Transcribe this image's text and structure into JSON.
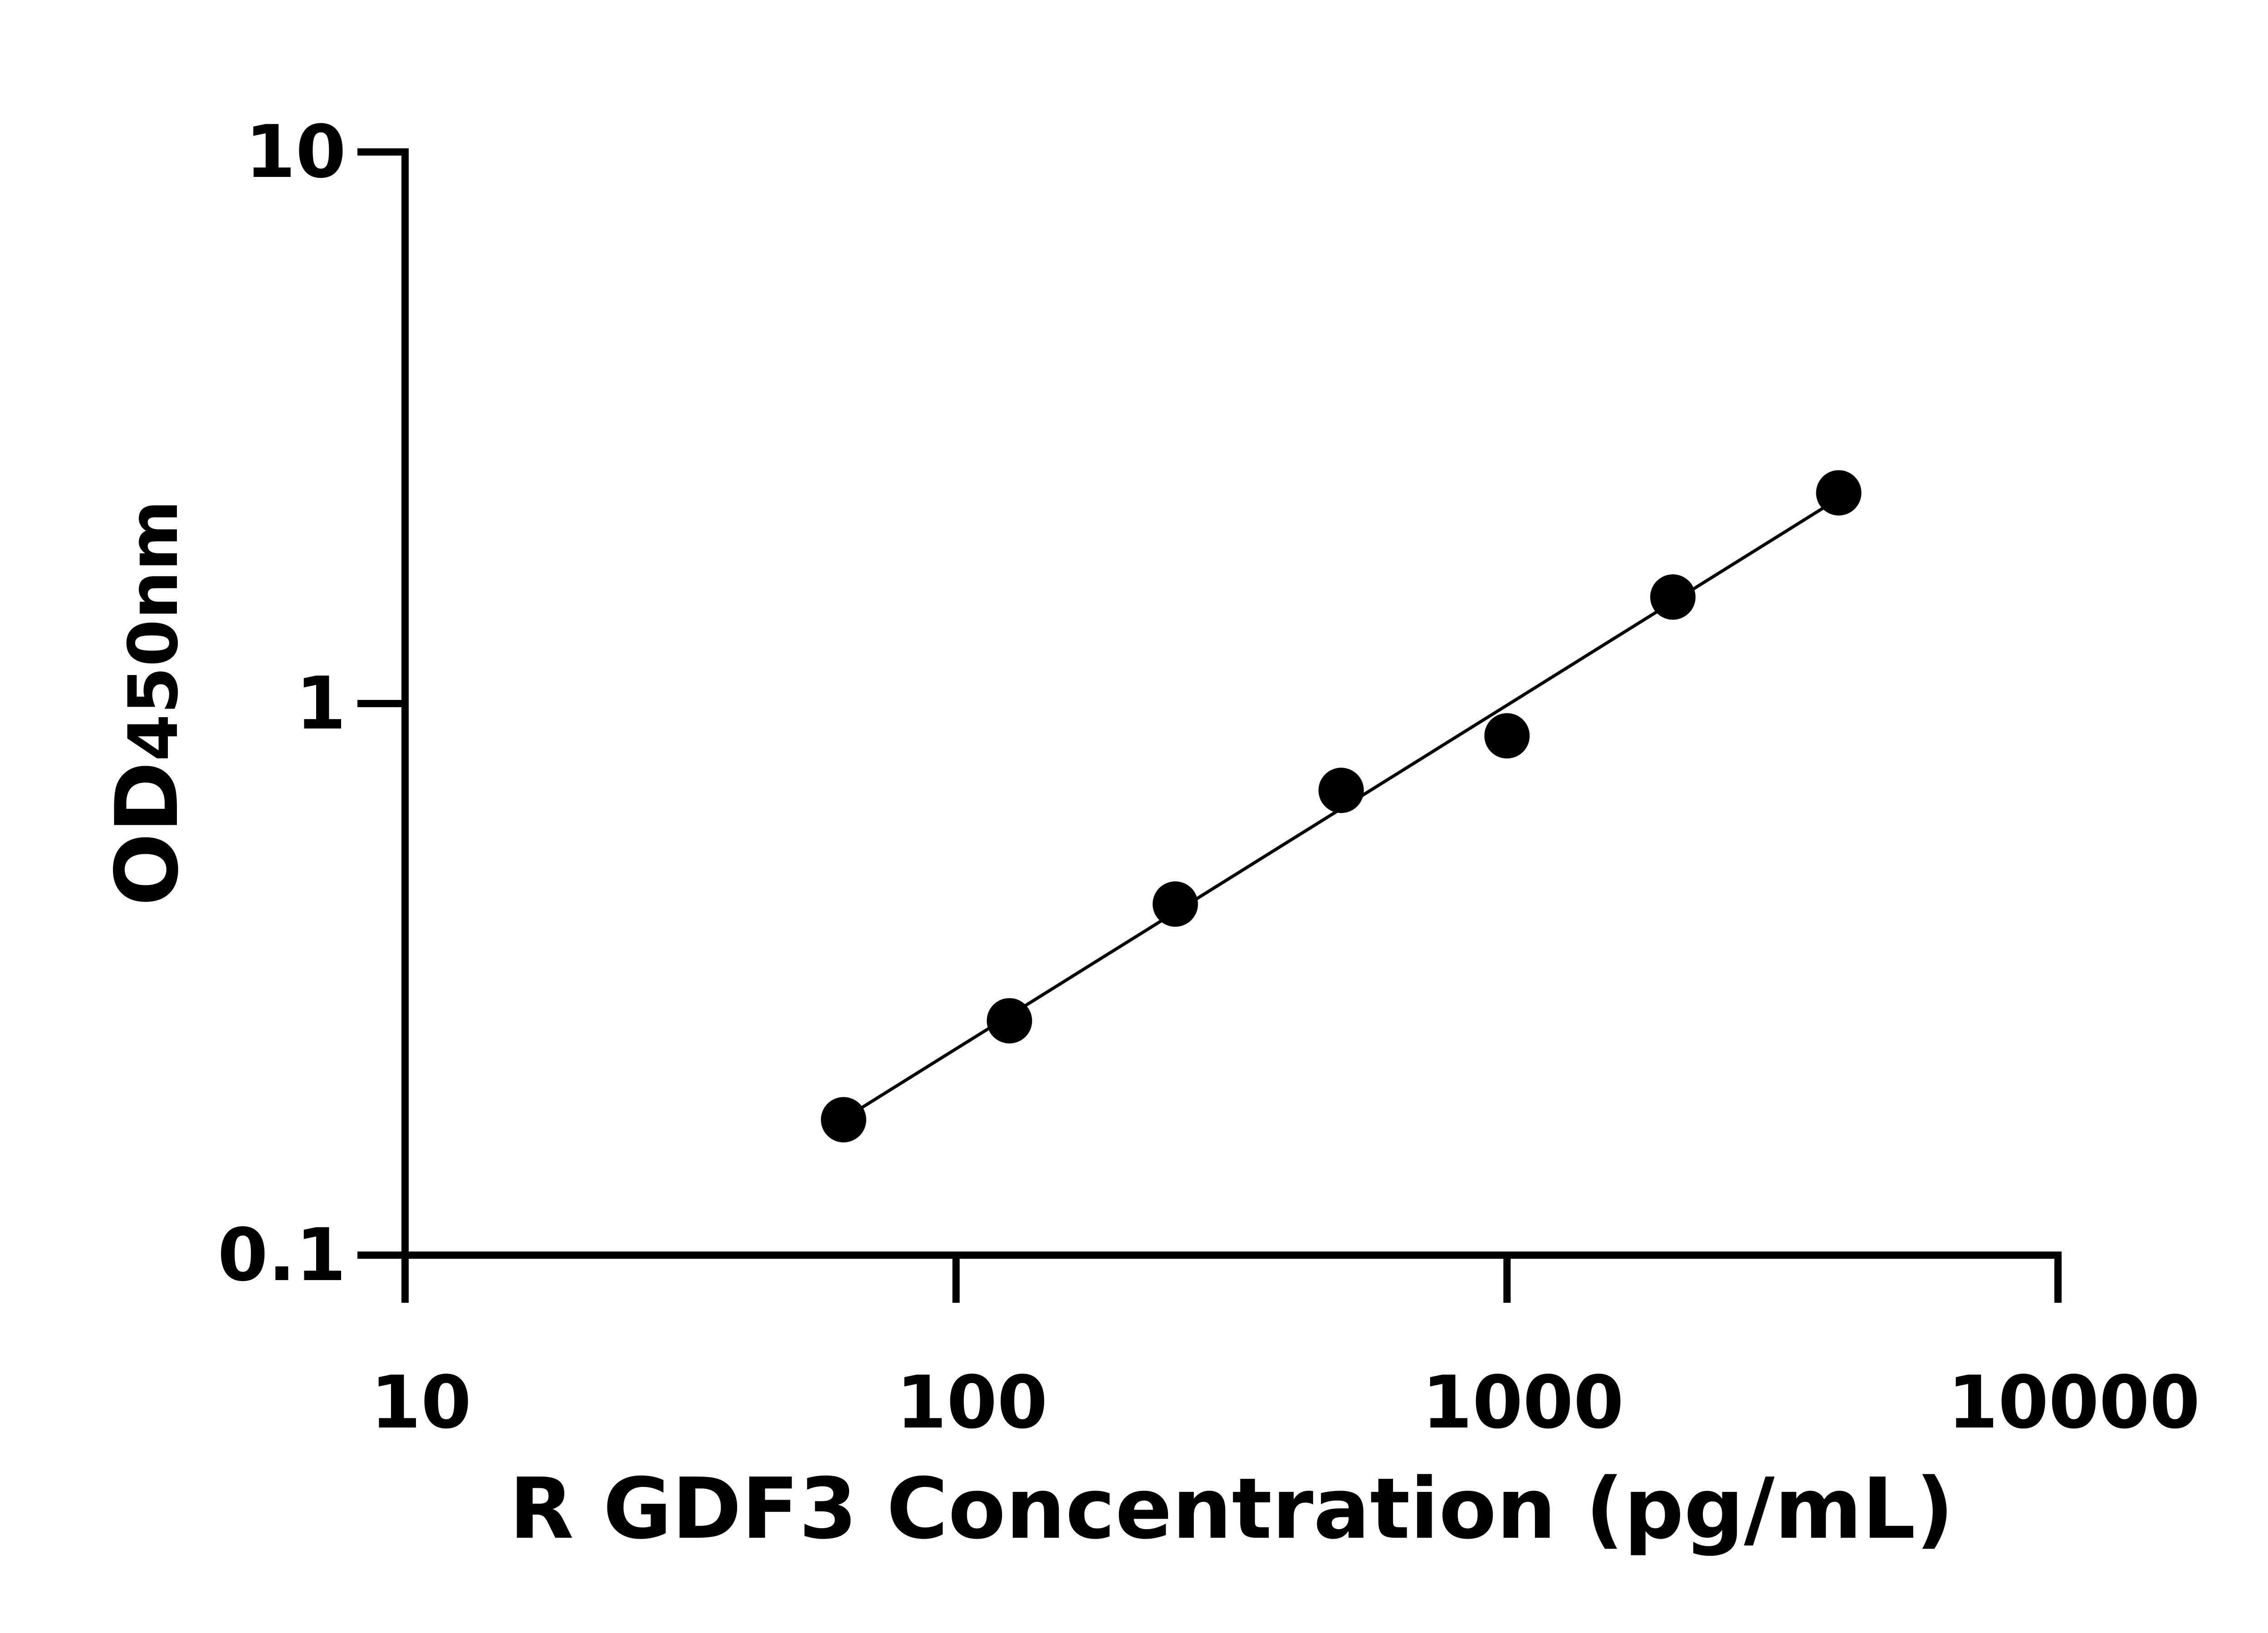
{
  "chart_data": {
    "type": "scatter",
    "title": "",
    "xlabel": "R GDF3 Concentration (pg/mL)",
    "ylabel_main": "OD",
    "ylabel_sub": "450nm",
    "xscale": "log",
    "yscale": "log",
    "xlim": [
      10,
      10000
    ],
    "ylim": [
      0.1,
      10
    ],
    "xticks": [
      "10",
      "100",
      "1000",
      "10000"
    ],
    "yticks": [
      "0.1",
      "1",
      "10"
    ],
    "grid": false,
    "legend": "none",
    "fit_line": "linear fit in log-log space",
    "colors": {
      "points": "#000000",
      "line": "#000000",
      "axes": "#000000"
    },
    "series": [
      {
        "x": [
          62.5,
          125,
          250,
          500,
          1000,
          2000,
          4000
        ],
        "y": [
          0.176,
          0.266,
          0.433,
          0.696,
          0.874,
          1.56,
          2.41
        ]
      }
    ]
  }
}
